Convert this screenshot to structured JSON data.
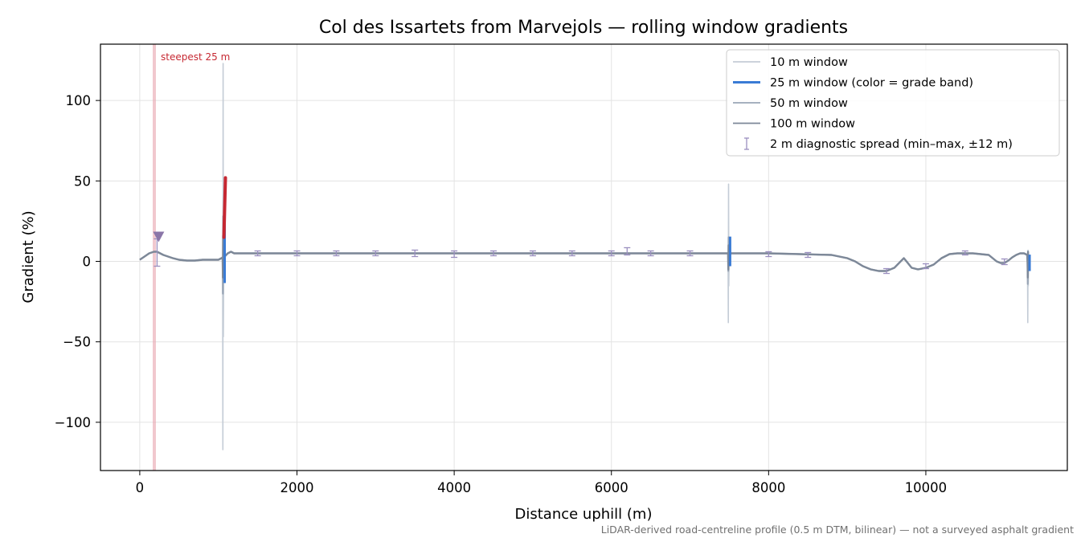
{
  "chart_data": {
    "type": "line",
    "title": "Col des Issartets from Marvejols — rolling window gradients",
    "xlabel": "Distance uphill (m)",
    "ylabel": "Gradient (%)",
    "xlim": [
      -500,
      11800
    ],
    "ylim": [
      -130,
      135
    ],
    "xticks": [
      0,
      2000,
      4000,
      6000,
      8000,
      10000
    ],
    "yticks": [
      -100,
      -50,
      0,
      50,
      100
    ],
    "xtick_labels": [
      "0",
      "2000",
      "4000",
      "6000",
      "8000",
      "10000"
    ],
    "ytick_labels": [
      "−100",
      "−50",
      "0",
      "50",
      "100"
    ],
    "grid": true,
    "legend_position": "top-right",
    "colors": {
      "w10": "#c4ccd6",
      "w25": "#3a7bd5",
      "w25_steep": "#c62832",
      "w50": "#9aa6b6",
      "w100": "#7d8898",
      "spread": "#9a8fbf",
      "steepest_band": "#e8a3ad",
      "marker": "#8a76a8"
    },
    "legend": [
      {
        "key": "w10",
        "label": "10 m window"
      },
      {
        "key": "w25",
        "label": "25 m window (color = grade band)"
      },
      {
        "key": "w50",
        "label": "50 m window"
      },
      {
        "key": "w100",
        "label": "100 m window"
      },
      {
        "key": "spread",
        "label": "2 m diagnostic spread (min–max, ±12 m)"
      }
    ],
    "annotation": {
      "label": "steepest 25 m",
      "x": 185
    },
    "footnote": "LiDAR-derived road-centreline profile (0.5 m DTM, bilinear) — not a surveyed asphalt gradient",
    "profile": {
      "x": [
        0,
        60,
        120,
        180,
        220,
        260,
        300,
        360,
        420,
        500,
        600,
        700,
        800,
        900,
        1000,
        1040,
        1080,
        1120,
        1160,
        1200,
        1300,
        1500,
        1800,
        2200,
        2600,
        3000,
        3400,
        3800,
        4200,
        4600,
        5000,
        5400,
        5800,
        6200,
        6600,
        7000,
        7400,
        7450,
        7520,
        7600,
        8000,
        8400,
        8800,
        9000,
        9100,
        9200,
        9300,
        9400,
        9500,
        9600,
        9660,
        9720,
        9770,
        9820,
        9900,
        10000,
        10100,
        10200,
        10300,
        10400,
        10500,
        10600,
        10700,
        10800,
        10850,
        10900,
        10950,
        11000,
        11050,
        11100,
        11150,
        11200,
        11250,
        11290,
        11310
      ],
      "y": [
        1,
        3,
        5,
        6,
        6,
        5,
        4,
        3,
        2,
        1,
        0.5,
        0.5,
        1,
        1,
        1,
        2,
        3,
        5,
        6,
        5,
        5,
        5,
        5,
        5,
        5,
        5,
        5,
        5,
        5,
        5,
        5,
        5,
        5,
        5,
        5,
        5,
        5,
        5,
        5,
        5,
        5,
        4.5,
        4,
        2,
        0,
        -3,
        -5,
        -6,
        -6,
        -4,
        -1,
        2,
        -1,
        -4,
        -5,
        -4,
        -2,
        2,
        4.5,
        5,
        5,
        5,
        4.5,
        4,
        2,
        0,
        -1,
        -1,
        0.5,
        2.5,
        4,
        5,
        5,
        4,
        -5
      ]
    },
    "spikes": [
      {
        "x": 1060,
        "w10": [
          -117,
          123
        ],
        "w25": [
          -45,
          52
        ],
        "w50": [
          -20,
          28
        ],
        "w100": [
          -10,
          16
        ]
      },
      {
        "x": 7490,
        "w10": [
          -38,
          48
        ],
        "w25": [
          -10,
          22
        ],
        "w50": [
          -6,
          15
        ],
        "w100": [
          -5,
          10
        ]
      },
      {
        "x": 11300,
        "w10": [
          -38,
          7
        ],
        "w25": [
          -20,
          6
        ],
        "w50": [
          -14,
          6
        ],
        "w100": [
          -10,
          6
        ]
      }
    ],
    "w25_steep_segment": {
      "x": [
        1070,
        1090
      ],
      "y": [
        15,
        52
      ]
    },
    "steepest_marker": {
      "x": 240,
      "y": 15.5
    },
    "spread_markers": [
      {
        "x": 220,
        "min": -3,
        "max": 14
      },
      {
        "x": 1500,
        "min": 3.5,
        "max": 6.5
      },
      {
        "x": 2000,
        "min": 3.5,
        "max": 6.5
      },
      {
        "x": 2500,
        "min": 3.5,
        "max": 6.5
      },
      {
        "x": 3000,
        "min": 3.5,
        "max": 6.5
      },
      {
        "x": 3500,
        "min": 3,
        "max": 7
      },
      {
        "x": 4000,
        "min": 2.5,
        "max": 6.5
      },
      {
        "x": 4500,
        "min": 3.5,
        "max": 6.5
      },
      {
        "x": 5000,
        "min": 3.5,
        "max": 6.5
      },
      {
        "x": 5500,
        "min": 3.5,
        "max": 6.5
      },
      {
        "x": 6000,
        "min": 3.5,
        "max": 6.5
      },
      {
        "x": 6200,
        "min": 4,
        "max": 8.5
      },
      {
        "x": 6500,
        "min": 3.5,
        "max": 6.5
      },
      {
        "x": 7000,
        "min": 3.5,
        "max": 6.5
      },
      {
        "x": 8000,
        "min": 3,
        "max": 6
      },
      {
        "x": 8500,
        "min": 2.5,
        "max": 5.5
      },
      {
        "x": 9500,
        "min": -7.5,
        "max": -4.5
      },
      {
        "x": 10000,
        "min": -4.5,
        "max": -1.5
      },
      {
        "x": 10500,
        "min": 4,
        "max": 6.5
      },
      {
        "x": 11000,
        "min": -2,
        "max": 1.5
      }
    ]
  }
}
